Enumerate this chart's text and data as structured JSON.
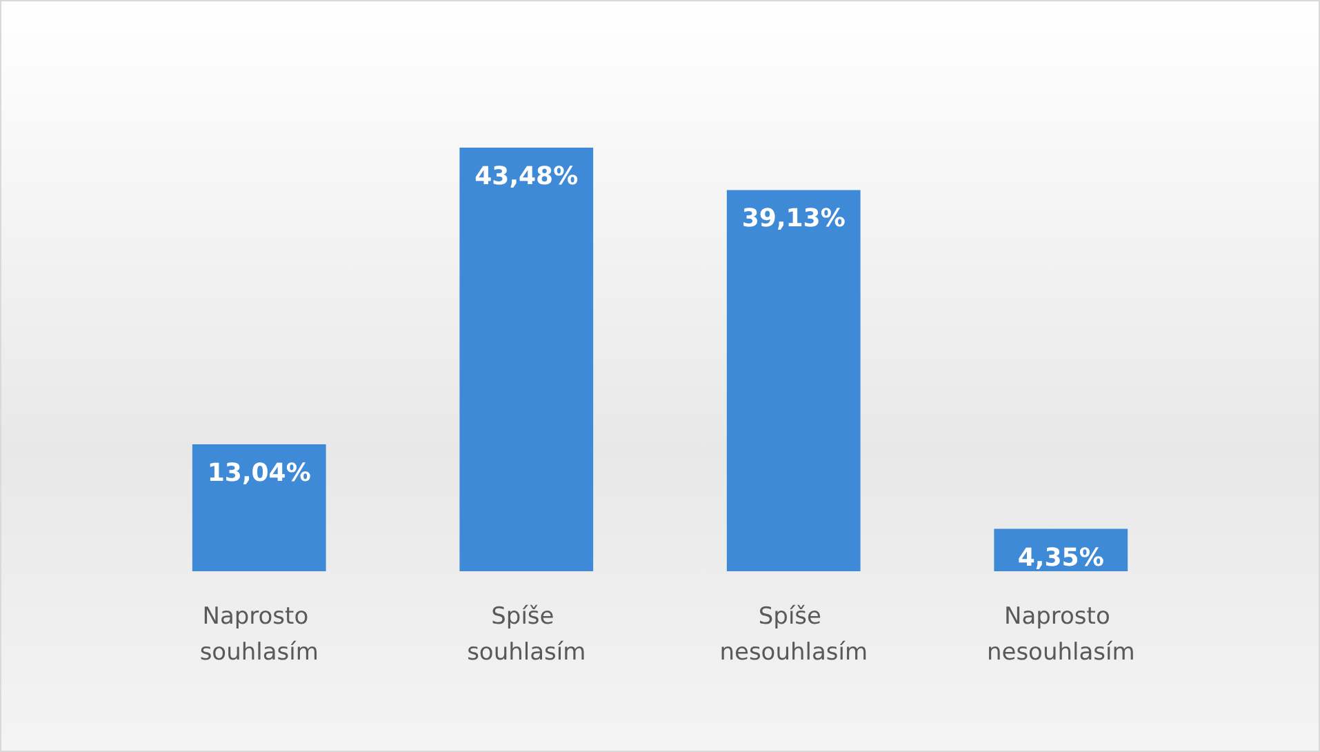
{
  "chart_data": {
    "type": "bar",
    "categories": [
      "Naprosto souhlasím",
      "Spíše souhlasím",
      "Spíše nesouhlasím",
      "Naprosto nesouhlasím"
    ],
    "values": [
      13.04,
      43.48,
      39.13,
      4.35
    ],
    "value_labels": [
      "13,04%",
      "43,48%",
      "39,13%",
      "4,35%"
    ],
    "color": "#3f8ad6"
  }
}
